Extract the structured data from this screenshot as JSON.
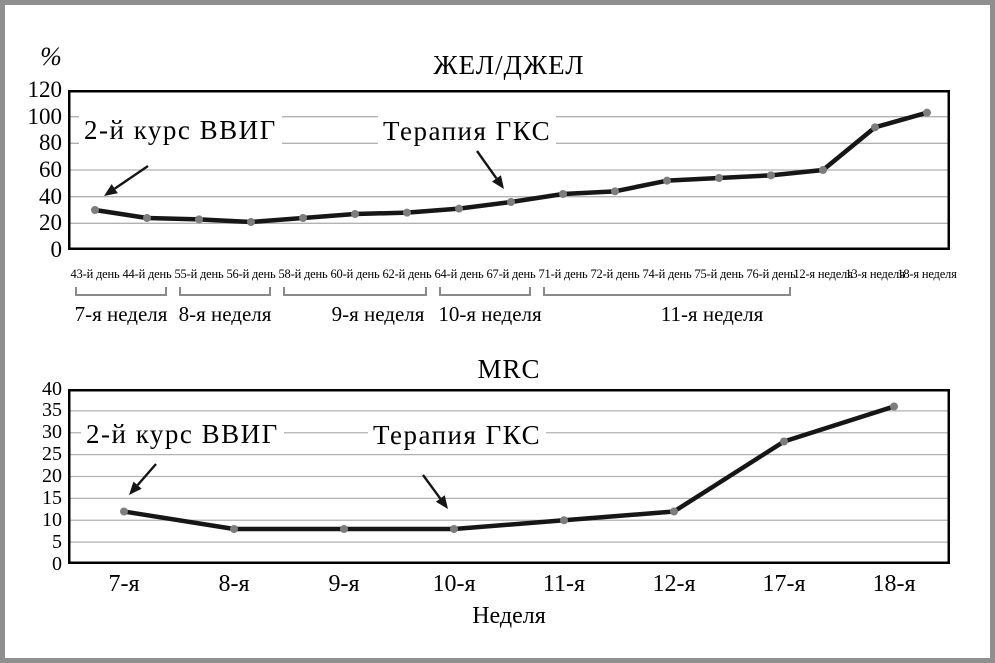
{
  "style_colors": {
    "line": "#161616",
    "marker": "#7d7d7d",
    "gridline": "#b2b2b2",
    "plot_border": "#000000",
    "outer_frame": "#8f8f8f",
    "bracket": "#8a8a8a"
  },
  "chart_data": [
    {
      "type": "line",
      "title": "ЖЕЛ/ДЖЕЛ",
      "ylabel": "%",
      "categories": [
        "43-й день",
        "44-й день",
        "55-й день",
        "56-й день",
        "58-й день",
        "60-й день",
        "62-й день",
        "64-й день",
        "67-й день",
        "71-й день",
        "72-й день",
        "74-й день",
        "75-й день",
        "76-й день",
        "12-я неделя",
        "13-я неделя",
        "18-я неделя"
      ],
      "values": [
        30,
        24,
        23,
        21,
        24,
        27,
        28,
        31,
        36,
        42,
        44,
        52,
        54,
        56,
        60,
        92,
        103
      ],
      "ylim": [
        0,
        120
      ],
      "ytick_step": 20,
      "grid": true,
      "legend": "none",
      "annotations": [
        {
          "text": "2-й курс ВВИГ"
        },
        {
          "text": "Терапия ГКС"
        }
      ],
      "x_groups": [
        {
          "label": "7-я неделя",
          "from": 0,
          "to": 1
        },
        {
          "label": "8-я неделя",
          "from": 2,
          "to": 3
        },
        {
          "label": "9-я неделя",
          "from": 4,
          "to": 6
        },
        {
          "label": "10-я неделя",
          "from": 7,
          "to": 8
        },
        {
          "label": "11-я неделя",
          "from": 9,
          "to": 13
        }
      ]
    },
    {
      "type": "line",
      "title": "MRC",
      "xlabel": "Неделя",
      "categories": [
        "7-я",
        "8-я",
        "9-я",
        "10-я",
        "11-я",
        "12-я",
        "17-я",
        "18-я"
      ],
      "values": [
        12,
        8,
        8,
        8,
        10,
        12,
        28,
        36
      ],
      "ylim": [
        0,
        40
      ],
      "ytick_step": 5,
      "grid": true,
      "legend": "none",
      "annotations": [
        {
          "text": "2-й курс ВВИГ"
        },
        {
          "text": "Терапия ГКС"
        }
      ]
    }
  ]
}
